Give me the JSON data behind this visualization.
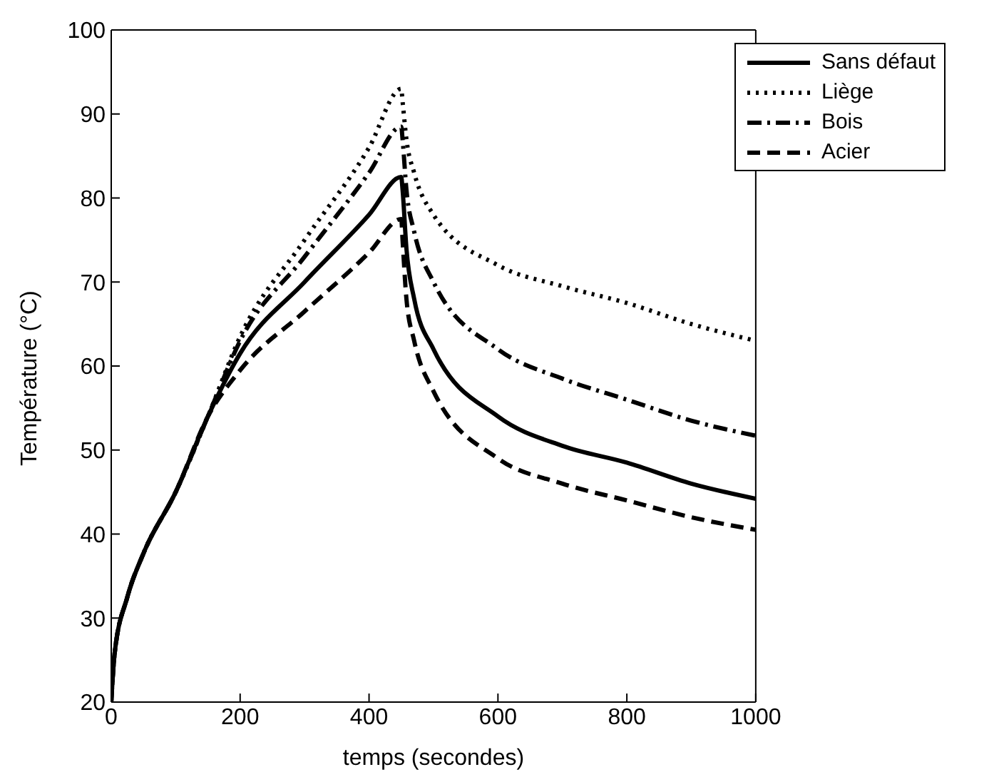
{
  "chart_data": {
    "type": "line",
    "xlabel": "temps (secondes)",
    "ylabel": "Température (°C)",
    "xlim": [
      0,
      1000
    ],
    "ylim": [
      20,
      100
    ],
    "xticks": [
      0,
      200,
      400,
      600,
      800,
      1000
    ],
    "yticks": [
      20,
      30,
      40,
      50,
      60,
      70,
      80,
      90,
      100
    ],
    "legend": "top right",
    "marker": "none",
    "series": [
      {
        "name": "Sans défaut",
        "color": "#000000",
        "line_style": "solid",
        "x": [
          0,
          5,
          25,
          50,
          100,
          150,
          200,
          300,
          400,
          450,
          452,
          458,
          470,
          500,
          600,
          700,
          800,
          900,
          1000
        ],
        "values": [
          20,
          25.6,
          32.5,
          37.7,
          45,
          54,
          61.5,
          70,
          78,
          82.5,
          81,
          74,
          68,
          62,
          54,
          50.5,
          48.5,
          46,
          44.2
        ]
      },
      {
        "name": "Liège",
        "color": "#000000",
        "line_style": "dotted",
        "x": [
          0,
          5,
          25,
          50,
          100,
          150,
          200,
          300,
          400,
          450,
          452,
          458,
          470,
          500,
          600,
          700,
          800,
          900,
          1000
        ],
        "values": [
          20,
          25.6,
          32.5,
          37.7,
          45,
          54,
          63.5,
          75,
          86,
          93,
          91.5,
          87,
          83,
          78,
          72,
          69.5,
          67.5,
          65,
          63
        ]
      },
      {
        "name": "Bois",
        "color": "#000000",
        "line_style": "dashdot",
        "x": [
          0,
          5,
          25,
          50,
          100,
          150,
          200,
          300,
          400,
          450,
          452,
          458,
          470,
          500,
          600,
          700,
          800,
          900,
          1000
        ],
        "values": [
          20,
          25.6,
          32.5,
          37.7,
          45,
          54,
          63,
          73,
          83,
          88.5,
          87,
          81,
          76,
          70,
          62,
          58.5,
          56,
          53.5,
          51.7
        ]
      },
      {
        "name": "Acier",
        "color": "#000000",
        "line_style": "dashed",
        "x": [
          0,
          5,
          25,
          50,
          100,
          150,
          200,
          300,
          400,
          450,
          452,
          458,
          470,
          500,
          600,
          700,
          800,
          900,
          1000
        ],
        "values": [
          20,
          25.6,
          32.5,
          37.7,
          45,
          54,
          59.5,
          66.5,
          73.5,
          77.5,
          75,
          68,
          63,
          57,
          49,
          46,
          44,
          42,
          40.5
        ]
      }
    ]
  }
}
